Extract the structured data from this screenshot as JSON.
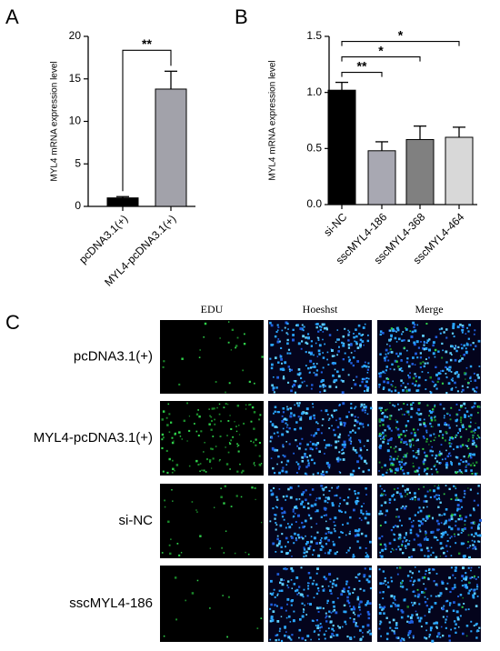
{
  "panel_labels": [
    "A",
    "B",
    "C"
  ],
  "chart_data": [
    {
      "type": "bar",
      "y_label": "MYL4 mRNA expression level",
      "categories": [
        "pcDNA3.1(+)",
        "MYL4-pcDNA3.1(+)"
      ],
      "values": [
        1.0,
        13.8
      ],
      "errors": [
        0.15,
        2.1
      ],
      "colors": [
        "#000000",
        "#a2a2aa"
      ],
      "ylim": [
        0,
        20
      ],
      "yticks": [
        0,
        5,
        10,
        15,
        20
      ],
      "significance": [
        {
          "label": "**",
          "between": [
            "pcDNA3.1(+)",
            "MYL4-pcDNA3.1(+)"
          ]
        }
      ]
    },
    {
      "type": "bar",
      "y_label": "MYL4 mRNA expression level",
      "categories": [
        "si-NC",
        "sscMYL4-186",
        "sscMYL4-368",
        "sscMYL4-464"
      ],
      "values": [
        1.02,
        0.48,
        0.58,
        0.6
      ],
      "errors": [
        0.07,
        0.08,
        0.12,
        0.09
      ],
      "colors": [
        "#000000",
        "#a8a8b2",
        "#808080",
        "#d8d8d8"
      ],
      "ylim": [
        0,
        1.5
      ],
      "yticks": [
        {
          "value": 0,
          "label": "0.0"
        },
        0.5,
        {
          "value": 1,
          "label": "1.0"
        },
        1.5
      ],
      "significance": [
        {
          "label": "**",
          "between": [
            "si-NC",
            "sscMYL4-186"
          ]
        },
        {
          "label": "*",
          "between": [
            "si-NC",
            "sscMYL4-368"
          ]
        },
        {
          "label": "*",
          "between": [
            "si-NC",
            "sscMYL4-464"
          ]
        }
      ]
    }
  ],
  "microscopy": {
    "columns": [
      "EDU",
      "Hoeshst",
      "Merge"
    ],
    "rows": [
      "pcDNA3.1(+)",
      "MYL4-pcDNA3.1(+)",
      "si-NC",
      "sscMYL4-186"
    ]
  }
}
